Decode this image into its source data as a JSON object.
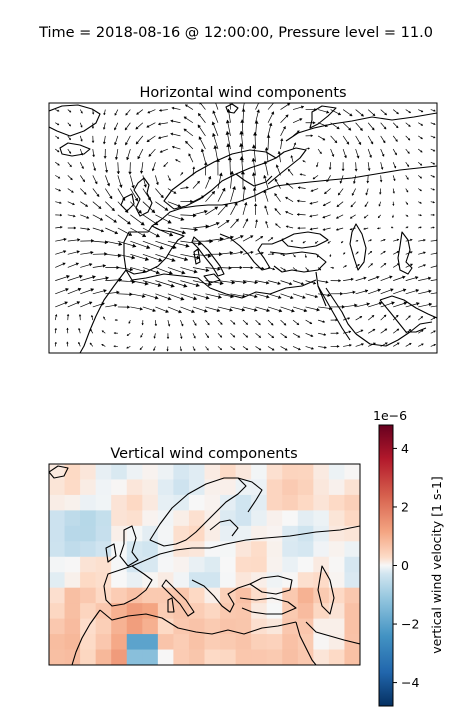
{
  "figure": {
    "suptitle": "Time = 2018-08-16 @ 12:00:00, Pressure level = 11.0"
  },
  "panels": [
    {
      "title": "Horizontal wind components",
      "kind": "quiver",
      "projection": "PlateCarree",
      "extent": {
        "lon": [
          -30,
          70
        ],
        "lat": [
          10,
          75
        ]
      }
    },
    {
      "title": "Vertical wind components",
      "kind": "pcolormesh",
      "projection": "PlateCarree",
      "extent": {
        "lon": [
          -30,
          50
        ],
        "lat": [
          10,
          60
        ]
      },
      "cmap": "RdBu_r"
    }
  ],
  "colorbar": {
    "label": "vertical wind velocity [1 s-1]",
    "offset_text": "1e−6",
    "ticks": [
      "4",
      "2",
      "0",
      "−2",
      "−4"
    ],
    "tick_values": [
      4,
      2,
      0,
      -2,
      -4
    ],
    "range": [
      -4.8,
      4.8
    ],
    "colors": {
      "max": "#67001f",
      "high": "#d6604d",
      "mid": "#f7f7f7",
      "low": "#4393c3",
      "min": "#053061"
    }
  }
}
